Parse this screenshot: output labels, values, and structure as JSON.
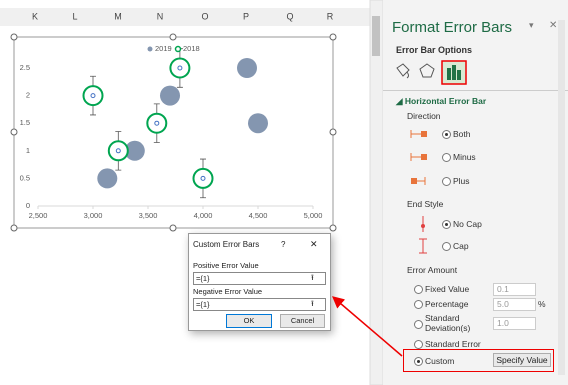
{
  "spreadsheet": {
    "columns": [
      "K",
      "L",
      "M",
      "N",
      "O",
      "P",
      "Q",
      "R"
    ]
  },
  "chart_data": {
    "type": "scatter",
    "legend": "top",
    "series": [
      {
        "name": "2019",
        "color": "#8496b0",
        "x": [
          3130,
          3380,
          3700,
          4400,
          4500
        ],
        "values": [
          0.5,
          1,
          2,
          2.5,
          1.5
        ]
      },
      {
        "name": "2018",
        "color": "#00a550",
        "x": [
          3000,
          3230,
          3580,
          3790,
          4000
        ],
        "values": [
          2,
          1,
          1.5,
          2.5,
          0.5
        ],
        "errors": [
          0.35,
          0.35,
          0.35,
          0.35,
          0.35
        ]
      }
    ],
    "xlim": [
      2500,
      5000
    ],
    "xticks": [
      {
        "value": 2500,
        "label": "2,500"
      },
      {
        "value": 3000,
        "label": "3,000"
      },
      {
        "value": 3500,
        "label": "3,500"
      },
      {
        "value": 4000,
        "label": "4,000"
      },
      {
        "value": 4500,
        "label": "4,500"
      },
      {
        "value": 5000,
        "label": "5,000"
      }
    ],
    "ylim": [
      0,
      2.5
    ],
    "yticks": [
      0,
      0.5,
      1,
      1.5,
      2,
      2.5
    ]
  },
  "format_pane": {
    "title": "Format Error Bars",
    "section": "Error Bar Options",
    "group": "Horizontal Error Bar",
    "direction": {
      "label": "Direction",
      "options": [
        "Both",
        "Minus",
        "Plus"
      ]
    },
    "end_style": {
      "label": "End Style",
      "options": [
        "No Cap",
        "Cap"
      ]
    },
    "error_amount": {
      "label": "Error Amount",
      "options": [
        {
          "label": "Fixed Value",
          "value": "0.1"
        },
        {
          "label": "Percentage",
          "value": "5.0",
          "unit": "%"
        },
        {
          "label": "Standard Deviation(s)",
          "value": "1.0"
        },
        {
          "label": "Standard Error"
        },
        {
          "label": "Custom"
        }
      ],
      "button": "Specify Value"
    }
  },
  "dialog": {
    "title": "Custom Error Bars",
    "help": "?",
    "close": "✕",
    "positive_label": "Positive Error Value",
    "positive_value": "={1}",
    "negative_label": "Negative Error Value",
    "negative_value": "={1}",
    "ok": "OK",
    "cancel": "Cancel"
  }
}
